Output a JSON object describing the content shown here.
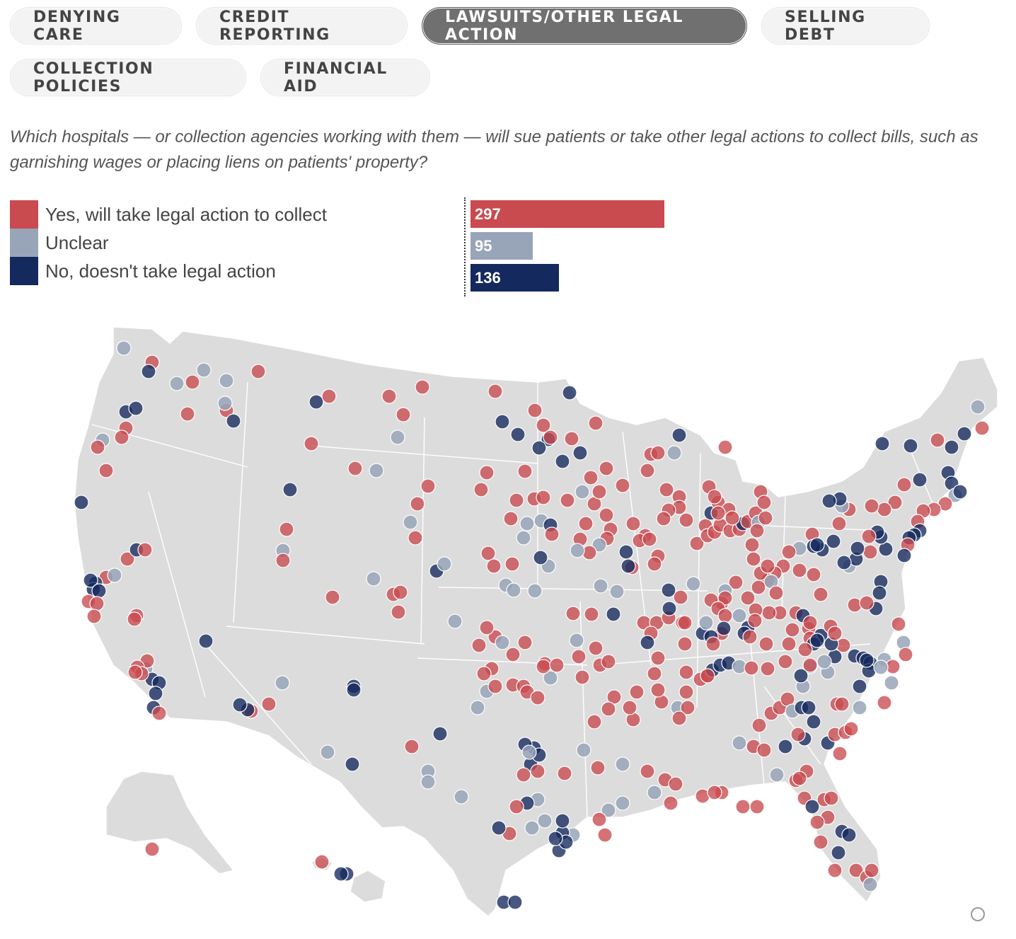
{
  "tabs": {
    "row1": [
      {
        "label": "DENYING CARE",
        "active": false
      },
      {
        "label": "CREDIT REPORTING",
        "active": false
      },
      {
        "label": "LAWSUITS/OTHER LEGAL ACTION",
        "active": true
      },
      {
        "label": "SELLING DEBT",
        "active": false
      }
    ],
    "row2": [
      {
        "label": "COLLECTION POLICIES",
        "active": false
      },
      {
        "label": "FINANCIAL AID",
        "active": false
      }
    ]
  },
  "question": "Which hospitals — or collection agencies working with them — will sue patients or take other legal actions to collect bills, such as garnishing wages or placing liens on patients' property?",
  "legend": [
    {
      "label": "Yes, will take legal action to collect",
      "color": "#c94a4f",
      "count": 297
    },
    {
      "label": "Unclear",
      "color": "#98a4b8",
      "count": 95
    },
    {
      "label": "No, doesn't take legal action",
      "color": "#14295e",
      "count": 136
    }
  ],
  "map": {
    "land_color": "#dcdcdc",
    "border_color": "#ffffff",
    "icon": "reset-circle-icon"
  }
}
